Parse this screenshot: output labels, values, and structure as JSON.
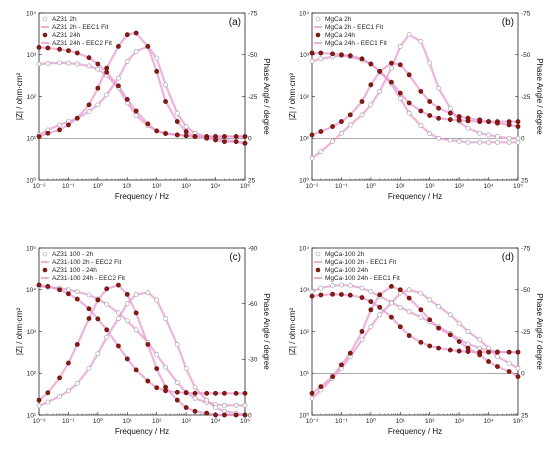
{
  "chart_data": [
    {
      "panel": "(a)",
      "type": "scatter",
      "xlabel": "Frequency / Hz",
      "ylabel_left": "|Z| / ohm·cm²",
      "ylabel_right": "Phase Angle / degree",
      "xscale": "log",
      "xlim": [
        0.01,
        100000
      ],
      "yscale_left": "log",
      "ylim_left": [
        1,
        10000
      ],
      "ylim_right": [
        25,
        -75
      ],
      "left_ticks": [
        "10⁰",
        "10¹",
        "10²",
        "10³",
        "10⁴"
      ],
      "right_ticks": [
        "25",
        "0",
        "-25",
        "-50",
        "-75"
      ],
      "x_ticks": [
        "10⁻²",
        "10⁻¹",
        "10⁰",
        "10¹",
        "10²",
        "10³",
        "10⁴",
        "10⁵"
      ],
      "legend": [
        "AZ31 2h",
        "AZ31 2h - EEC1 Fit",
        "AZ31 24h",
        "AZ31 24h - EEC2 Fit"
      ],
      "series": [
        {
          "name": "AZ31 2h",
          "kind": "mag",
          "x": [
            0.01,
            0.02,
            0.05,
            0.1,
            0.2,
            0.5,
            1,
            2,
            5,
            10,
            20,
            50,
            100,
            200,
            500,
            1000,
            2000,
            5000,
            10000,
            20000,
            50000,
            100000
          ],
          "values": [
            600,
            620,
            640,
            630,
            600,
            540,
            450,
            320,
            160,
            70,
            35,
            20,
            15,
            13,
            12,
            11.5,
            11,
            11,
            11,
            11,
            11,
            11
          ]
        },
        {
          "name": "AZ31 2h",
          "kind": "phase",
          "x": [
            0.01,
            0.02,
            0.05,
            0.1,
            0.2,
            0.5,
            1,
            2,
            5,
            10,
            20,
            50,
            100,
            200,
            500,
            1000,
            2000,
            5000,
            10000,
            20000,
            50000,
            100000
          ],
          "values": [
            -2,
            -5,
            -8,
            -10,
            -12,
            -16,
            -20,
            -26,
            -36,
            -46,
            -52,
            -55,
            -48,
            -32,
            -15,
            -7,
            -3,
            -1,
            0,
            1,
            2,
            3
          ]
        },
        {
          "name": "AZ31 24h",
          "kind": "mag",
          "x": [
            0.01,
            0.02,
            0.05,
            0.1,
            0.2,
            0.5,
            1,
            2,
            5,
            10,
            20,
            50,
            100,
            200,
            500,
            1000,
            2000,
            5000,
            10000,
            20000,
            50000,
            100000
          ],
          "values": [
            1500,
            1450,
            1350,
            1250,
            1100,
            850,
            600,
            380,
            180,
            85,
            45,
            22,
            15,
            13,
            12,
            11.5,
            11,
            11,
            11,
            11,
            11,
            11
          ]
        },
        {
          "name": "AZ31 24h",
          "kind": "phase",
          "x": [
            0.01,
            0.02,
            0.05,
            0.1,
            0.2,
            0.5,
            1,
            2,
            5,
            10,
            20,
            50,
            100,
            200,
            500,
            1000,
            2000,
            5000,
            10000,
            20000,
            50000,
            100000
          ],
          "values": [
            -1,
            -3,
            -5,
            -8,
            -12,
            -20,
            -30,
            -42,
            -55,
            -62,
            -63,
            -55,
            -40,
            -22,
            -10,
            -4,
            -1,
            0,
            1,
            2,
            2,
            3
          ]
        }
      ]
    },
    {
      "panel": "(b)",
      "type": "scatter",
      "xlabel": "Frequency / Hz",
      "ylabel_left": "|Z| / ohm·cm²",
      "ylabel_right": "Phase Angle / degree",
      "xscale": "log",
      "xlim": [
        0.01,
        100000
      ],
      "yscale_left": "log",
      "ylim_left": [
        1,
        10000
      ],
      "ylim_right": [
        25,
        -75
      ],
      "left_ticks": [
        "10⁰",
        "10¹",
        "10²",
        "10³",
        "10⁴"
      ],
      "right_ticks": [
        "25",
        "0",
        "-25",
        "-50",
        "-75"
      ],
      "x_ticks": [
        "10⁻²",
        "10⁻¹",
        "10⁰",
        "10¹",
        "10²",
        "10³",
        "10⁴",
        "10⁵"
      ],
      "legend": [
        "MgCa 2h",
        "MgCa 2h - EEC1 Fit",
        "MgCa 24h",
        "MgCa 24h - EEC1 Fit"
      ],
      "series": [
        {
          "name": "MgCa 2h",
          "kind": "mag",
          "x": [
            0.01,
            0.02,
            0.05,
            0.1,
            0.2,
            0.5,
            1,
            2,
            5,
            10,
            20,
            50,
            100,
            200,
            500,
            1000,
            2000,
            5000,
            10000,
            20000,
            50000,
            100000
          ],
          "values": [
            700,
            800,
            900,
            950,
            900,
            750,
            600,
            400,
            200,
            90,
            40,
            20,
            13,
            10,
            9,
            8.5,
            8,
            8,
            8,
            8,
            8,
            8
          ]
        },
        {
          "name": "MgCa 2h",
          "kind": "phase",
          "x": [
            0.01,
            0.02,
            0.05,
            0.1,
            0.2,
            0.5,
            1,
            2,
            5,
            10,
            20,
            50,
            100,
            200,
            500,
            1000,
            2000,
            5000,
            10000,
            20000,
            50000,
            100000
          ],
          "values": [
            12,
            8,
            2,
            -3,
            -8,
            -14,
            -20,
            -28,
            -42,
            -55,
            -62,
            -58,
            -45,
            -30,
            -18,
            -10,
            -6,
            -3,
            -2,
            -1,
            0,
            0
          ]
        },
        {
          "name": "MgCa 24h",
          "kind": "mag",
          "x": [
            0.01,
            0.02,
            0.05,
            0.1,
            0.2,
            0.5,
            1,
            2,
            5,
            10,
            20,
            50,
            100,
            200,
            500,
            1000,
            2000,
            5000,
            10000,
            20000,
            50000,
            100000
          ],
          "values": [
            1100,
            1100,
            1050,
            1000,
            950,
            800,
            600,
            400,
            220,
            120,
            70,
            45,
            35,
            30,
            28,
            27,
            26,
            25,
            25,
            25,
            25,
            25
          ]
        },
        {
          "name": "MgCa 24h",
          "kind": "phase",
          "x": [
            0.01,
            0.02,
            0.05,
            0.1,
            0.2,
            0.5,
            1,
            2,
            5,
            10,
            20,
            50,
            100,
            200,
            500,
            1000,
            2000,
            5000,
            10000,
            20000,
            50000,
            100000
          ],
          "values": [
            -2,
            -4,
            -7,
            -10,
            -14,
            -22,
            -32,
            -40,
            -45,
            -44,
            -38,
            -28,
            -22,
            -18,
            -15,
            -13,
            -12,
            -11,
            -10,
            -9,
            -8,
            -7
          ]
        }
      ]
    },
    {
      "panel": "(c)",
      "type": "scatter",
      "xlabel": "Frequency / Hz",
      "ylabel_left": "|Z| / ohm·cm²",
      "ylabel_right": "Phase Angle / degree",
      "xscale": "log",
      "xlim": [
        0.01,
        100000
      ],
      "yscale_left": "log",
      "ylim_left": [
        10,
        100000
      ],
      "ylim_right": [
        0,
        -90
      ],
      "left_ticks": [
        "10¹",
        "10²",
        "10³",
        "10⁴",
        "10⁵"
      ],
      "right_ticks": [
        "0",
        "-30",
        "-60",
        "-90"
      ],
      "x_ticks": [
        "10⁻²",
        "10⁻¹",
        "10⁰",
        "10¹",
        "10²",
        "10³",
        "10⁴",
        "10⁵"
      ],
      "legend": [
        "AZ31 100 - 2h",
        "AZ31-100 2h - EEC2 Fit",
        "AZ31 100 - 24h",
        "AZ31-100 24h - EEC2 Fit"
      ],
      "series": [
        {
          "name": "AZ31 100 - 2h",
          "kind": "mag",
          "x": [
            0.01,
            0.02,
            0.05,
            0.1,
            0.2,
            0.5,
            1,
            2,
            5,
            10,
            20,
            50,
            100,
            200,
            500,
            1000,
            2000,
            5000,
            10000,
            20000,
            50000,
            100000
          ],
          "values": [
            12000,
            11500,
            11000,
            10000,
            9000,
            7500,
            6000,
            4500,
            2800,
            1800,
            1100,
            550,
            280,
            140,
            60,
            35,
            25,
            20,
            18,
            17,
            17,
            17
          ]
        },
        {
          "name": "AZ31 100 - 2h",
          "kind": "phase",
          "x": [
            0.01,
            0.02,
            0.05,
            0.1,
            0.2,
            0.5,
            1,
            2,
            5,
            10,
            20,
            50,
            100,
            200,
            500,
            1000,
            2000,
            5000,
            10000,
            20000,
            50000,
            100000
          ],
          "values": [
            -5,
            -7,
            -10,
            -13,
            -17,
            -25,
            -33,
            -42,
            -52,
            -60,
            -65,
            -66,
            -62,
            -52,
            -38,
            -25,
            -15,
            -8,
            -4,
            -2,
            -1,
            0
          ]
        },
        {
          "name": "AZ31 100 - 24h",
          "kind": "mag",
          "x": [
            0.01,
            0.02,
            0.05,
            0.1,
            0.2,
            0.5,
            1,
            2,
            5,
            10,
            20,
            50,
            100,
            200,
            500,
            1000,
            2000,
            5000,
            10000,
            20000,
            50000,
            100000
          ],
          "values": [
            13000,
            12000,
            10000,
            8000,
            6000,
            3500,
            2000,
            1100,
            450,
            220,
            120,
            65,
            45,
            38,
            35,
            34,
            33,
            33,
            33,
            33,
            33,
            33
          ]
        },
        {
          "name": "AZ31 100 - 24h",
          "kind": "phase",
          "x": [
            0.01,
            0.02,
            0.05,
            0.1,
            0.2,
            0.5,
            1,
            2,
            5,
            10,
            20,
            50,
            100,
            200,
            500,
            1000,
            2000,
            5000,
            10000,
            20000,
            50000,
            100000
          ],
          "values": [
            -8,
            -12,
            -20,
            -28,
            -38,
            -52,
            -62,
            -68,
            -70,
            -65,
            -55,
            -38,
            -25,
            -15,
            -8,
            -4,
            -2,
            -1,
            0,
            0,
            0,
            0
          ]
        }
      ]
    },
    {
      "panel": "(d)",
      "type": "scatter",
      "xlabel": "Frequency / Hz",
      "ylabel_left": "|Z| / ohm·cm²",
      "ylabel_right": "Phase Angle / degree",
      "xscale": "log",
      "xlim": [
        0.01,
        100000
      ],
      "yscale_left": "log",
      "ylim_left": [
        1,
        10000
      ],
      "ylim_right": [
        25,
        -75
      ],
      "left_ticks": [
        "10⁰",
        "10¹",
        "10²",
        "10³",
        "10⁴"
      ],
      "right_ticks": [
        "25",
        "0",
        "-25",
        "-50",
        "-75"
      ],
      "x_ticks": [
        "10⁻²",
        "10⁻¹",
        "10⁰",
        "10¹",
        "10²",
        "10³",
        "10⁴",
        "10⁵"
      ],
      "legend": [
        "MgCa-100 2h",
        "MgCa-100 2h - EEC1 Fit",
        "MgCa-100 24h",
        "MgCa-100 24h - EEC1 Fit"
      ],
      "series": [
        {
          "name": "MgCa-100 2h",
          "kind": "mag",
          "x": [
            0.01,
            0.02,
            0.05,
            0.1,
            0.2,
            0.5,
            1,
            2,
            5,
            10,
            20,
            50,
            100,
            200,
            500,
            1000,
            2000,
            5000,
            10000,
            20000,
            50000,
            100000
          ],
          "values": [
            900,
            1100,
            1250,
            1300,
            1250,
            1100,
            900,
            700,
            500,
            380,
            300,
            220,
            170,
            130,
            90,
            65,
            50,
            40,
            35,
            33,
            32,
            32
          ]
        },
        {
          "name": "MgCa-100 2h",
          "kind": "phase",
          "x": [
            0.01,
            0.02,
            0.05,
            0.1,
            0.2,
            0.5,
            1,
            2,
            5,
            10,
            20,
            50,
            100,
            200,
            500,
            1000,
            2000,
            5000,
            10000,
            20000,
            50000,
            100000
          ],
          "values": [
            15,
            10,
            3,
            -3,
            -10,
            -20,
            -28,
            -35,
            -42,
            -48,
            -50,
            -48,
            -44,
            -40,
            -35,
            -30,
            -25,
            -20,
            -15,
            -10,
            -6,
            -3
          ]
        },
        {
          "name": "MgCa-100 24h",
          "kind": "mag",
          "x": [
            0.01,
            0.02,
            0.05,
            0.1,
            0.2,
            0.5,
            1,
            2,
            5,
            10,
            20,
            50,
            100,
            200,
            500,
            1000,
            2000,
            5000,
            10000,
            20000,
            50000,
            100000
          ],
          "values": [
            700,
            750,
            780,
            770,
            740,
            650,
            520,
            380,
            220,
            130,
            80,
            55,
            45,
            40,
            36,
            34,
            33,
            32,
            32,
            32,
            32,
            32
          ]
        },
        {
          "name": "MgCa-100 24h",
          "kind": "phase",
          "x": [
            0.01,
            0.02,
            0.05,
            0.1,
            0.2,
            0.5,
            1,
            2,
            5,
            10,
            20,
            50,
            100,
            200,
            500,
            1000,
            2000,
            5000,
            10000,
            20000,
            50000,
            100000
          ],
          "values": [
            12,
            8,
            2,
            -5,
            -12,
            -25,
            -38,
            -47,
            -52,
            -50,
            -45,
            -38,
            -32,
            -27,
            -23,
            -19,
            -15,
            -11,
            -7,
            -4,
            -1,
            2
          ]
        }
      ]
    }
  ]
}
